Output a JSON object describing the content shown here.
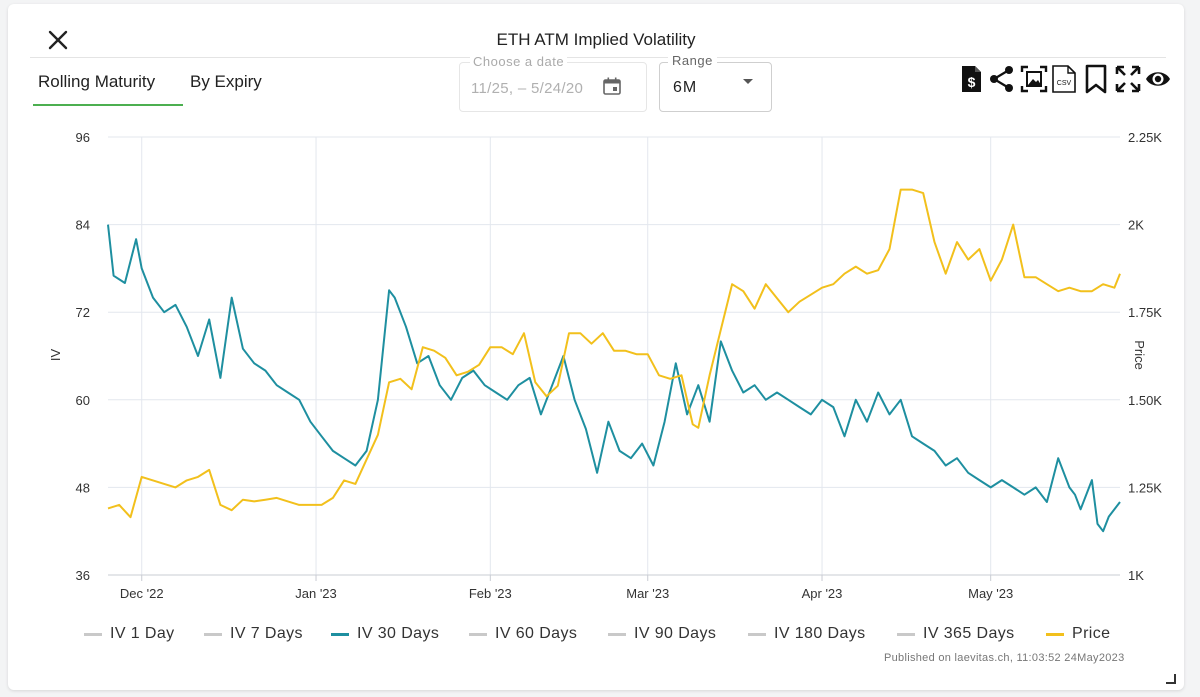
{
  "title": "ETH ATM Implied Volatility",
  "tabs": [
    {
      "label": "Rolling Maturity",
      "active": true
    },
    {
      "label": "By Expiry",
      "active": false
    }
  ],
  "date_picker": {
    "legend": "Choose a date",
    "value": "11/25, – 5/24/20"
  },
  "range_select": {
    "legend": "Range",
    "value": "6M"
  },
  "toolbar_icons": [
    "dollar-doc-icon",
    "share-icon",
    "image-export-icon",
    "csv-export-icon",
    "bookmark-icon",
    "fullscreen-icon",
    "eye-icon"
  ],
  "published": "Published on laevitas.ch, 11:03:52 24May2023",
  "colors": {
    "iv30": "#1e8fa0",
    "price": "#f2c01c",
    "hidden": "#c9c9c9",
    "active_tab": "#4caf50"
  },
  "chart_data": {
    "type": "line",
    "title": "ETH ATM Implied Volatility",
    "xlabel": "",
    "ylabel": "IV",
    "y2label": "Price",
    "x_ticks": [
      "Dec '22",
      "Jan '23",
      "Feb '23",
      "Mar '23",
      "Apr '23",
      "May '23"
    ],
    "x_range": [
      "2022-11-25",
      "2023-05-24"
    ],
    "y_ticks": [
      "36",
      "48",
      "60",
      "72",
      "84",
      "96"
    ],
    "ylim": [
      36,
      96
    ],
    "y2_ticks": [
      "1K",
      "1.25K",
      "1.50K",
      "1.75K",
      "2K",
      "2.25K"
    ],
    "y2lim": [
      1000,
      2250
    ],
    "grid": true,
    "legend_position": "bottom",
    "legend": [
      {
        "name": "IV 1 Day",
        "visible": false
      },
      {
        "name": "IV 7 Days",
        "visible": false
      },
      {
        "name": "IV 30 Days",
        "visible": true
      },
      {
        "name": "IV 60 Days",
        "visible": false
      },
      {
        "name": "IV 90 Days",
        "visible": false
      },
      {
        "name": "IV 180 Days",
        "visible": false
      },
      {
        "name": "IV 365 Days",
        "visible": false
      },
      {
        "name": "Price",
        "visible": true
      }
    ],
    "series": [
      {
        "name": "IV 30 Days",
        "axis": "left",
        "x": [
          "2022-11-25",
          "2022-11-26",
          "2022-11-28",
          "2022-11-30",
          "2022-12-01",
          "2022-12-03",
          "2022-12-05",
          "2022-12-07",
          "2022-12-09",
          "2022-12-11",
          "2022-12-13",
          "2022-12-15",
          "2022-12-17",
          "2022-12-19",
          "2022-12-21",
          "2022-12-23",
          "2022-12-25",
          "2022-12-27",
          "2022-12-29",
          "2022-12-31",
          "2023-01-02",
          "2023-01-04",
          "2023-01-06",
          "2023-01-08",
          "2023-01-10",
          "2023-01-12",
          "2023-01-14",
          "2023-01-15",
          "2023-01-17",
          "2023-01-19",
          "2023-01-21",
          "2023-01-23",
          "2023-01-25",
          "2023-01-27",
          "2023-01-29",
          "2023-01-31",
          "2023-02-02",
          "2023-02-04",
          "2023-02-06",
          "2023-02-08",
          "2023-02-10",
          "2023-02-12",
          "2023-02-14",
          "2023-02-16",
          "2023-02-18",
          "2023-02-20",
          "2023-02-22",
          "2023-02-24",
          "2023-02-26",
          "2023-02-28",
          "2023-03-02",
          "2023-03-04",
          "2023-03-06",
          "2023-03-08",
          "2023-03-10",
          "2023-03-12",
          "2023-03-14",
          "2023-03-16",
          "2023-03-18",
          "2023-03-20",
          "2023-03-22",
          "2023-03-24",
          "2023-03-26",
          "2023-03-28",
          "2023-03-30",
          "2023-04-01",
          "2023-04-03",
          "2023-04-05",
          "2023-04-07",
          "2023-04-09",
          "2023-04-11",
          "2023-04-13",
          "2023-04-15",
          "2023-04-17",
          "2023-04-19",
          "2023-04-21",
          "2023-04-23",
          "2023-04-25",
          "2023-04-27",
          "2023-04-29",
          "2023-05-01",
          "2023-05-03",
          "2023-05-05",
          "2023-05-07",
          "2023-05-09",
          "2023-05-11",
          "2023-05-13",
          "2023-05-15",
          "2023-05-16",
          "2023-05-17",
          "2023-05-19",
          "2023-05-20",
          "2023-05-21",
          "2023-05-22",
          "2023-05-24"
        ],
        "values": [
          84,
          77,
          76,
          82,
          78,
          74,
          72,
          73,
          70,
          66,
          71,
          63,
          74,
          67,
          65,
          64,
          62,
          61,
          60,
          57,
          55,
          53,
          52,
          51,
          53,
          60,
          75,
          74,
          70,
          65,
          66,
          62,
          60,
          63,
          64,
          62,
          61,
          60,
          62,
          63,
          58,
          62,
          66,
          60,
          56,
          50,
          57,
          53,
          52,
          54,
          51,
          57,
          65,
          58,
          62,
          57,
          68,
          64,
          61,
          62,
          60,
          61,
          60,
          59,
          58,
          60,
          59,
          55,
          60,
          57,
          61,
          58,
          60,
          55,
          54,
          53,
          51,
          52,
          50,
          49,
          48,
          49,
          48,
          47,
          48,
          46,
          52,
          48,
          47,
          45,
          49,
          43,
          42,
          44,
          46
        ]
      },
      {
        "name": "Price",
        "axis": "right",
        "x": [
          "2022-11-25",
          "2022-11-27",
          "2022-11-29",
          "2022-12-01",
          "2022-12-03",
          "2022-12-05",
          "2022-12-07",
          "2022-12-09",
          "2022-12-11",
          "2022-12-13",
          "2022-12-15",
          "2022-12-17",
          "2022-12-19",
          "2022-12-21",
          "2022-12-23",
          "2022-12-25",
          "2022-12-27",
          "2022-12-29",
          "2022-12-31",
          "2023-01-02",
          "2023-01-04",
          "2023-01-06",
          "2023-01-08",
          "2023-01-10",
          "2023-01-12",
          "2023-01-14",
          "2023-01-16",
          "2023-01-18",
          "2023-01-20",
          "2023-01-22",
          "2023-01-24",
          "2023-01-26",
          "2023-01-28",
          "2023-01-30",
          "2023-02-01",
          "2023-02-03",
          "2023-02-05",
          "2023-02-07",
          "2023-02-09",
          "2023-02-11",
          "2023-02-13",
          "2023-02-15",
          "2023-02-17",
          "2023-02-19",
          "2023-02-21",
          "2023-02-23",
          "2023-02-25",
          "2023-02-27",
          "2023-03-01",
          "2023-03-03",
          "2023-03-05",
          "2023-03-07",
          "2023-03-09",
          "2023-03-10",
          "2023-03-12",
          "2023-03-14",
          "2023-03-16",
          "2023-03-18",
          "2023-03-20",
          "2023-03-22",
          "2023-03-24",
          "2023-03-26",
          "2023-03-28",
          "2023-03-30",
          "2023-04-01",
          "2023-04-03",
          "2023-04-05",
          "2023-04-07",
          "2023-04-09",
          "2023-04-11",
          "2023-04-13",
          "2023-04-15",
          "2023-04-17",
          "2023-04-19",
          "2023-04-21",
          "2023-04-23",
          "2023-04-25",
          "2023-04-27",
          "2023-04-29",
          "2023-05-01",
          "2023-05-03",
          "2023-05-05",
          "2023-05-07",
          "2023-05-09",
          "2023-05-11",
          "2023-05-13",
          "2023-05-15",
          "2023-05-17",
          "2023-05-19",
          "2023-05-21",
          "2023-05-23",
          "2023-05-24"
        ],
        "values": [
          1190,
          1200,
          1165,
          1280,
          1270,
          1260,
          1250,
          1270,
          1280,
          1300,
          1200,
          1185,
          1215,
          1210,
          1215,
          1220,
          1210,
          1200,
          1200,
          1200,
          1220,
          1270,
          1260,
          1330,
          1400,
          1550,
          1560,
          1530,
          1650,
          1640,
          1620,
          1570,
          1580,
          1600,
          1650,
          1650,
          1630,
          1690,
          1550,
          1510,
          1540,
          1690,
          1690,
          1660,
          1690,
          1640,
          1640,
          1630,
          1630,
          1570,
          1560,
          1570,
          1430,
          1420,
          1570,
          1700,
          1830,
          1810,
          1760,
          1830,
          1790,
          1750,
          1780,
          1800,
          1820,
          1830,
          1860,
          1880,
          1860,
          1870,
          1930,
          2100,
          2100,
          2090,
          1950,
          1860,
          1950,
          1900,
          1930,
          1840,
          1900,
          2000,
          1850,
          1850,
          1830,
          1810,
          1820,
          1810,
          1810,
          1830,
          1820,
          1860
        ]
      }
    ]
  }
}
